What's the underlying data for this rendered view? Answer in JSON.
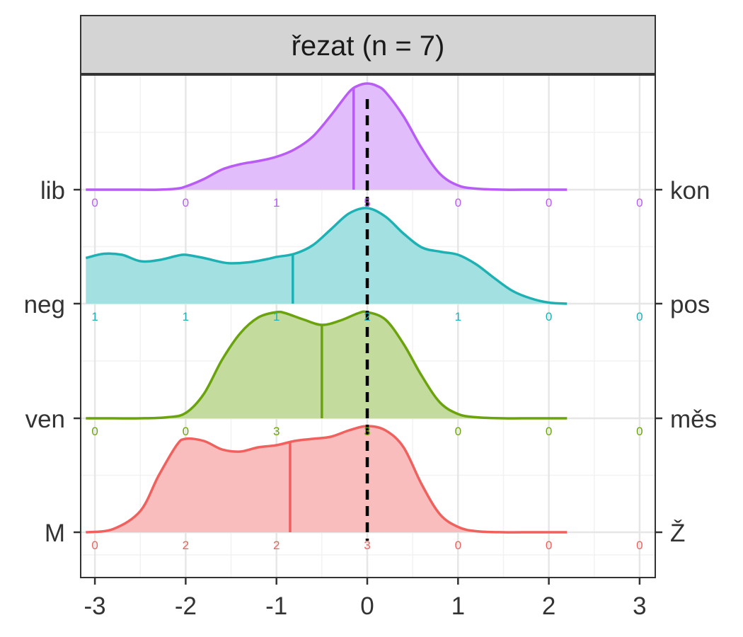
{
  "chart_data": {
    "type": "ridgeline",
    "facet_title": "řezat (n = 7)",
    "x_ticks": [
      -3,
      -2,
      -1,
      0,
      1,
      2,
      3
    ],
    "x_tick_labels": [
      "-3",
      "-2",
      "-1",
      "0",
      "1",
      "2",
      "3"
    ],
    "xlim": [
      -3.1,
      3.1
    ],
    "reference_line_x": 0,
    "grid": true,
    "count_positions": [
      -3,
      -2,
      -1,
      0,
      1,
      2,
      3
    ],
    "series": [
      {
        "left_label": "M",
        "right_label": "Ž",
        "color": "#F0605D",
        "fill": "#F8BDBC",
        "mean": -0.85,
        "counts": [
          0,
          2,
          2,
          3,
          0,
          0,
          0
        ],
        "density_x": [
          -3.1,
          -2.8,
          -2.5,
          -2.3,
          -2.1,
          -2.0,
          -1.8,
          -1.6,
          -1.4,
          -1.2,
          -1.0,
          -0.8,
          -0.6,
          -0.4,
          -0.2,
          0.0,
          0.2,
          0.4,
          0.6,
          0.8,
          1.0,
          1.2,
          1.5,
          1.8,
          2.0,
          2.2
        ],
        "density_y": [
          0.0,
          0.03,
          0.2,
          0.53,
          0.82,
          0.88,
          0.86,
          0.78,
          0.76,
          0.8,
          0.82,
          0.86,
          0.88,
          0.9,
          0.96,
          1.0,
          0.96,
          0.8,
          0.45,
          0.17,
          0.05,
          0.01,
          0.0,
          0.0,
          0.0,
          0.0
        ]
      },
      {
        "left_label": "ven",
        "right_label": "měs",
        "color": "#6AA30C",
        "fill": "#C3DB9C",
        "mean": -0.5,
        "counts": [
          0,
          0,
          3,
          3,
          0,
          0,
          0
        ],
        "density_x": [
          -3.1,
          -2.8,
          -2.5,
          -2.2,
          -2.0,
          -1.8,
          -1.6,
          -1.4,
          -1.2,
          -1.0,
          -0.9,
          -0.7,
          -0.5,
          -0.3,
          -0.1,
          0.0,
          0.2,
          0.4,
          0.6,
          0.8,
          1.0,
          1.2,
          1.5,
          1.8,
          2.0,
          2.2
        ],
        "density_y": [
          0.0,
          0.0,
          0.0,
          0.01,
          0.05,
          0.23,
          0.55,
          0.8,
          0.95,
          1.0,
          0.99,
          0.93,
          0.88,
          0.92,
          0.99,
          1.0,
          0.93,
          0.7,
          0.4,
          0.15,
          0.04,
          0.01,
          0.0,
          0.0,
          0.0,
          0.0
        ]
      },
      {
        "left_label": "neg",
        "right_label": "pos",
        "color": "#1DB1B4",
        "fill": "#A3E0E1",
        "mean": -0.82,
        "counts": [
          1,
          1,
          1,
          2,
          1,
          0,
          0
        ],
        "density_x": [
          -3.1,
          -2.9,
          -2.7,
          -2.5,
          -2.3,
          -2.1,
          -2.0,
          -1.8,
          -1.6,
          -1.5,
          -1.3,
          -1.1,
          -1.0,
          -0.8,
          -0.6,
          -0.4,
          -0.2,
          0.0,
          0.2,
          0.4,
          0.6,
          0.8,
          1.0,
          1.2,
          1.4,
          1.6,
          1.8,
          2.0,
          2.2
        ],
        "density_y": [
          0.43,
          0.47,
          0.46,
          0.4,
          0.41,
          0.45,
          0.46,
          0.43,
          0.39,
          0.38,
          0.39,
          0.42,
          0.44,
          0.47,
          0.55,
          0.7,
          0.85,
          0.9,
          0.82,
          0.66,
          0.53,
          0.49,
          0.46,
          0.37,
          0.24,
          0.12,
          0.05,
          0.01,
          0.0
        ]
      },
      {
        "left_label": "lib",
        "right_label": "kon",
        "color": "#B85CF5",
        "fill": "#E2BDFC",
        "mean": -0.15,
        "counts": [
          0,
          0,
          1,
          5,
          0,
          0,
          0
        ],
        "density_x": [
          -3.1,
          -2.8,
          -2.5,
          -2.3,
          -2.1,
          -2.0,
          -1.8,
          -1.6,
          -1.4,
          -1.2,
          -1.0,
          -0.8,
          -0.6,
          -0.4,
          -0.2,
          -0.1,
          0.0,
          0.1,
          0.2,
          0.4,
          0.6,
          0.8,
          1.0,
          1.2,
          1.5,
          1.8,
          2.0,
          2.2
        ],
        "density_y": [
          0.0,
          0.0,
          0.0,
          0.0,
          0.01,
          0.03,
          0.1,
          0.19,
          0.24,
          0.27,
          0.31,
          0.38,
          0.5,
          0.7,
          0.92,
          0.98,
          1.0,
          0.98,
          0.92,
          0.69,
          0.39,
          0.15,
          0.04,
          0.01,
          0.0,
          0.0,
          0.0,
          0.0
        ]
      }
    ]
  }
}
